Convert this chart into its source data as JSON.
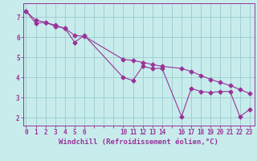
{
  "xlabel": "Windchill (Refroidissement éolien,°C)",
  "bg_color": "#c8ecec",
  "line_color": "#993399",
  "grid_color": "#99cccc",
  "axis_color": "#993399",
  "xticks": [
    0,
    1,
    2,
    3,
    4,
    5,
    6,
    10,
    11,
    12,
    13,
    14,
    16,
    17,
    18,
    19,
    20,
    21,
    22,
    23
  ],
  "xtick_labels": [
    "0",
    "1",
    "2",
    "3",
    "4",
    "5",
    "6",
    "10",
    "11",
    "12",
    "13",
    "14",
    "16",
    "17",
    "18",
    "19",
    "20",
    "21",
    "22",
    "23"
  ],
  "yticks": [
    2,
    3,
    4,
    5,
    6,
    7
  ],
  "ylim": [
    1.6,
    7.7
  ],
  "xlim": [
    -0.3,
    23.5
  ],
  "series1_x": [
    0,
    1,
    2,
    3,
    4,
    5,
    6,
    10,
    11,
    12,
    13,
    14,
    16,
    17,
    18,
    19,
    20,
    21,
    22,
    23
  ],
  "series1_y": [
    7.3,
    6.7,
    6.75,
    6.55,
    6.45,
    5.75,
    6.1,
    4.0,
    3.85,
    4.55,
    4.45,
    4.45,
    2.05,
    3.45,
    3.3,
    3.25,
    3.3,
    3.3,
    2.05,
    2.4
  ],
  "series2_x": [
    0,
    1,
    2,
    3,
    4,
    5,
    6,
    10,
    11,
    12,
    13,
    14,
    16,
    17,
    18,
    19,
    20,
    21,
    22,
    23
  ],
  "series2_y": [
    7.3,
    6.85,
    6.75,
    6.6,
    6.45,
    6.1,
    6.05,
    4.9,
    4.85,
    4.75,
    4.65,
    4.55,
    4.45,
    4.3,
    4.1,
    3.9,
    3.75,
    3.6,
    3.4,
    3.2
  ],
  "marker_size": 2.5,
  "line_width": 0.8,
  "tick_fontsize": 5.5,
  "label_fontsize": 6.5
}
